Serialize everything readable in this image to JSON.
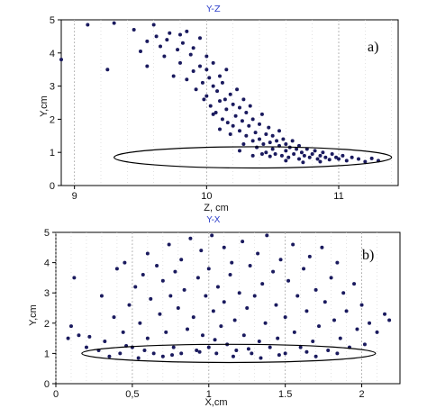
{
  "chart_data": [
    {
      "type": "scatter",
      "panel_label": "a)",
      "title": "Y-Z",
      "xlabel": "Z, cm",
      "ylabel": "Y,cm",
      "xlim": [
        8.9,
        11.45
      ],
      "ylim": [
        0,
        5
      ],
      "xticks": [
        "9",
        "10",
        "11"
      ],
      "yticks": [
        "0",
        "1",
        "2",
        "3",
        "4",
        "5"
      ],
      "grid": "vertical-dashed",
      "marker_color": "#1a1a5e",
      "ellipse": {
        "cx": 10.35,
        "cy": 0.85,
        "rx": 1.05,
        "ry": 0.32
      },
      "points": [
        [
          8.9,
          3.8
        ],
        [
          9.1,
          4.85
        ],
        [
          9.3,
          4.9
        ],
        [
          9.25,
          3.5
        ],
        [
          9.45,
          4.7
        ],
        [
          9.5,
          4.05
        ],
        [
          9.55,
          3.6
        ],
        [
          9.55,
          4.35
        ],
        [
          9.6,
          4.85
        ],
        [
          9.62,
          4.5
        ],
        [
          9.65,
          4.2
        ],
        [
          9.68,
          3.9
        ],
        [
          9.7,
          4.4
        ],
        [
          9.72,
          4.6
        ],
        [
          9.75,
          3.3
        ],
        [
          9.78,
          4.1
        ],
        [
          9.8,
          4.55
        ],
        [
          9.8,
          3.7
        ],
        [
          9.82,
          4.3
        ],
        [
          9.85,
          3.2
        ],
        [
          9.85,
          4.65
        ],
        [
          9.88,
          3.95
        ],
        [
          9.9,
          3.45
        ],
        [
          9.9,
          4.15
        ],
        [
          9.92,
          2.9
        ],
        [
          9.95,
          3.6
        ],
        [
          9.95,
          4.45
        ],
        [
          9.97,
          3.1
        ],
        [
          10.0,
          3.5
        ],
        [
          10.0,
          2.7
        ],
        [
          10.0,
          3.9
        ],
        [
          10.02,
          3.25
        ],
        [
          10.03,
          2.4
        ],
        [
          10.05,
          3.0
        ],
        [
          10.05,
          3.7
        ],
        [
          10.07,
          2.2
        ],
        [
          10.08,
          2.85
        ],
        [
          10.1,
          3.3
        ],
        [
          10.1,
          2.55
        ],
        [
          10.12,
          2.0
        ],
        [
          10.12,
          3.1
        ],
        [
          10.14,
          2.6
        ],
        [
          10.15,
          2.3
        ],
        [
          10.16,
          1.9
        ],
        [
          10.18,
          2.75
        ],
        [
          10.2,
          2.45
        ],
        [
          10.2,
          1.8
        ],
        [
          10.22,
          2.1
        ],
        [
          10.23,
          2.9
        ],
        [
          10.25,
          1.65
        ],
        [
          10.25,
          2.35
        ],
        [
          10.27,
          1.95
        ],
        [
          10.28,
          2.6
        ],
        [
          10.3,
          1.5
        ],
        [
          10.3,
          2.2
        ],
        [
          10.32,
          1.8
        ],
        [
          10.33,
          2.4
        ],
        [
          10.35,
          1.35
        ],
        [
          10.35,
          2.0
        ],
        [
          10.37,
          1.6
        ],
        [
          10.38,
          1.15
        ],
        [
          10.4,
          1.85
        ],
        [
          10.4,
          1.4
        ],
        [
          10.42,
          2.15
        ],
        [
          10.43,
          1.25
        ],
        [
          10.45,
          1.55
        ],
        [
          10.45,
          1.0
        ],
        [
          10.47,
          1.75
        ],
        [
          10.48,
          1.3
        ],
        [
          10.5,
          1.1
        ],
        [
          10.5,
          1.5
        ],
        [
          10.52,
          0.95
        ],
        [
          10.53,
          1.35
        ],
        [
          10.55,
          1.2
        ],
        [
          10.55,
          1.65
        ],
        [
          10.57,
          0.9
        ],
        [
          10.58,
          1.4
        ],
        [
          10.6,
          1.05
        ],
        [
          10.6,
          1.25
        ],
        [
          10.62,
          0.85
        ],
        [
          10.63,
          1.15
        ],
        [
          10.65,
          1.35
        ],
        [
          10.66,
          0.95
        ],
        [
          10.68,
          1.1
        ],
        [
          10.7,
          0.8
        ],
        [
          10.7,
          1.2
        ],
        [
          10.72,
          1.0
        ],
        [
          10.74,
          0.9
        ],
        [
          10.76,
          1.1
        ],
        [
          10.78,
          0.85
        ],
        [
          10.8,
          0.95
        ],
        [
          10.82,
          1.05
        ],
        [
          10.84,
          0.8
        ],
        [
          10.86,
          0.9
        ],
        [
          10.88,
          1.0
        ],
        [
          10.9,
          0.85
        ],
        [
          10.93,
          0.78
        ],
        [
          10.95,
          0.95
        ],
        [
          10.98,
          0.85
        ],
        [
          11.0,
          0.8
        ],
        [
          11.03,
          0.9
        ],
        [
          11.06,
          0.75
        ],
        [
          11.1,
          0.85
        ],
        [
          11.15,
          0.8
        ],
        [
          11.2,
          0.72
        ],
        [
          11.25,
          0.82
        ],
        [
          11.3,
          0.75
        ],
        [
          10.15,
          3.5
        ],
        [
          10.05,
          2.15
        ],
        [
          10.28,
          1.25
        ],
        [
          10.42,
          0.95
        ],
        [
          10.18,
          1.55
        ],
        [
          9.98,
          2.6
        ],
        [
          10.1,
          1.7
        ],
        [
          10.25,
          1.05
        ],
        [
          10.35,
          0.9
        ],
        [
          10.48,
          0.88
        ],
        [
          10.6,
          0.75
        ],
        [
          10.73,
          0.7
        ],
        [
          10.86,
          0.72
        ]
      ]
    },
    {
      "type": "scatter",
      "panel_label": "b)",
      "title": "Y-X",
      "xlabel": "X,cm",
      "ylabel": "Y,cm",
      "xlim": [
        0,
        2.25
      ],
      "ylim": [
        0,
        5
      ],
      "xticks": [
        "0",
        "0,5",
        "1",
        "1.5",
        "2"
      ],
      "yticks": [
        "0",
        "1",
        "2",
        "3",
        "4",
        "5"
      ],
      "grid": "vertical-dashed",
      "marker_color": "#1a1a5e",
      "ellipse": {
        "cx": 1.13,
        "cy": 1.0,
        "rx": 0.96,
        "ry": 0.3
      },
      "points": [
        [
          0.08,
          1.5
        ],
        [
          0.1,
          1.9
        ],
        [
          0.12,
          3.5
        ],
        [
          0.15,
          1.6
        ],
        [
          0.2,
          1.2
        ],
        [
          0.22,
          1.55
        ],
        [
          0.28,
          1.1
        ],
        [
          0.3,
          2.9
        ],
        [
          0.32,
          1.4
        ],
        [
          0.35,
          0.9
        ],
        [
          0.38,
          2.2
        ],
        [
          0.4,
          3.8
        ],
        [
          0.42,
          1.0
        ],
        [
          0.44,
          1.7
        ],
        [
          0.45,
          4.0
        ],
        [
          0.48,
          2.6
        ],
        [
          0.5,
          1.2
        ],
        [
          0.52,
          3.2
        ],
        [
          0.54,
          0.85
        ],
        [
          0.55,
          2.0
        ],
        [
          0.57,
          3.6
        ],
        [
          0.6,
          1.5
        ],
        [
          0.6,
          4.3
        ],
        [
          0.62,
          2.8
        ],
        [
          0.64,
          1.0
        ],
        [
          0.66,
          3.9
        ],
        [
          0.68,
          2.3
        ],
        [
          0.7,
          0.9
        ],
        [
          0.7,
          3.4
        ],
        [
          0.72,
          1.7
        ],
        [
          0.74,
          4.6
        ],
        [
          0.75,
          2.9
        ],
        [
          0.77,
          1.2
        ],
        [
          0.78,
          3.7
        ],
        [
          0.8,
          2.5
        ],
        [
          0.82,
          1.0
        ],
        [
          0.82,
          4.1
        ],
        [
          0.84,
          3.1
        ],
        [
          0.86,
          1.8
        ],
        [
          0.88,
          4.8
        ],
        [
          0.9,
          2.2
        ],
        [
          0.92,
          1.1
        ],
        [
          0.93,
          3.5
        ],
        [
          0.95,
          4.4
        ],
        [
          0.96,
          1.6
        ],
        [
          0.98,
          2.9
        ],
        [
          1.0,
          1.2
        ],
        [
          1.0,
          3.8
        ],
        [
          1.02,
          4.9
        ],
        [
          1.03,
          2.4
        ],
        [
          1.05,
          1.0
        ],
        [
          1.06,
          3.2
        ],
        [
          1.08,
          1.9
        ],
        [
          1.1,
          4.5
        ],
        [
          1.1,
          2.7
        ],
        [
          1.12,
          1.3
        ],
        [
          1.14,
          3.6
        ],
        [
          1.15,
          4.0
        ],
        [
          1.17,
          2.1
        ],
        [
          1.18,
          1.1
        ],
        [
          1.2,
          3.0
        ],
        [
          1.22,
          4.7
        ],
        [
          1.23,
          1.6
        ],
        [
          1.25,
          2.5
        ],
        [
          1.27,
          3.9
        ],
        [
          1.28,
          1.0
        ],
        [
          1.3,
          2.9
        ],
        [
          1.32,
          4.3
        ],
        [
          1.33,
          1.4
        ],
        [
          1.35,
          3.3
        ],
        [
          1.37,
          2.0
        ],
        [
          1.38,
          4.9
        ],
        [
          1.4,
          1.2
        ],
        [
          1.42,
          3.7
        ],
        [
          1.44,
          2.6
        ],
        [
          1.45,
          1.5
        ],
        [
          1.47,
          4.1
        ],
        [
          1.5,
          2.2
        ],
        [
          1.5,
          1.0
        ],
        [
          1.52,
          3.4
        ],
        [
          1.55,
          4.6
        ],
        [
          1.56,
          1.7
        ],
        [
          1.58,
          2.9
        ],
        [
          1.6,
          1.2
        ],
        [
          1.62,
          3.8
        ],
        [
          1.64,
          2.4
        ],
        [
          1.66,
          4.2
        ],
        [
          1.68,
          1.4
        ],
        [
          1.7,
          3.1
        ],
        [
          1.72,
          1.9
        ],
        [
          1.74,
          4.5
        ],
        [
          1.76,
          2.7
        ],
        [
          1.78,
          1.1
        ],
        [
          1.8,
          3.5
        ],
        [
          1.82,
          2.1
        ],
        [
          1.84,
          4.0
        ],
        [
          1.86,
          1.5
        ],
        [
          1.88,
          3.0
        ],
        [
          1.9,
          2.4
        ],
        [
          1.92,
          1.2
        ],
        [
          1.95,
          3.3
        ],
        [
          1.97,
          1.8
        ],
        [
          2.0,
          2.6
        ],
        [
          2.02,
          1.3
        ],
        [
          2.05,
          2.0
        ],
        [
          2.1,
          1.7
        ],
        [
          2.15,
          2.3
        ],
        [
          2.18,
          2.1
        ],
        [
          0.58,
          1.1
        ],
        [
          0.76,
          0.95
        ],
        [
          0.94,
          1.05
        ],
        [
          1.16,
          0.9
        ],
        [
          1.26,
          1.15
        ],
        [
          1.46,
          0.95
        ],
        [
          1.64,
          1.05
        ],
        [
          1.84,
          1.0
        ],
        [
          0.46,
          1.25
        ],
        [
          1.04,
          1.45
        ],
        [
          1.34,
          0.85
        ],
        [
          1.7,
          0.9
        ]
      ]
    }
  ]
}
